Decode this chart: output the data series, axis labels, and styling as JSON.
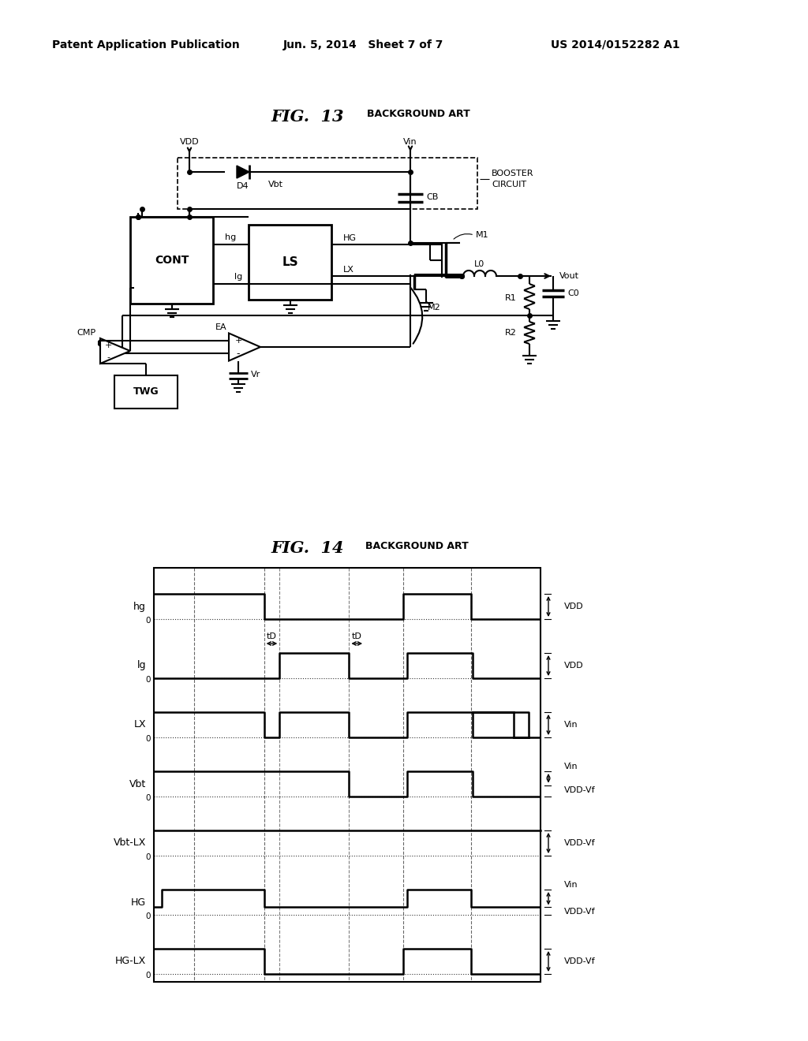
{
  "header_left": "Patent Application Publication",
  "header_mid": "Jun. 5, 2014   Sheet 7 of 7",
  "header_right": "US 2014/0152282 A1",
  "fig13_title": "FIG.  13",
  "fig13_subtitle": "BACKGROUND ART",
  "fig14_title": "FIG.  14",
  "fig14_subtitle": "BACKGROUND ART",
  "bg_color": "#ffffff"
}
